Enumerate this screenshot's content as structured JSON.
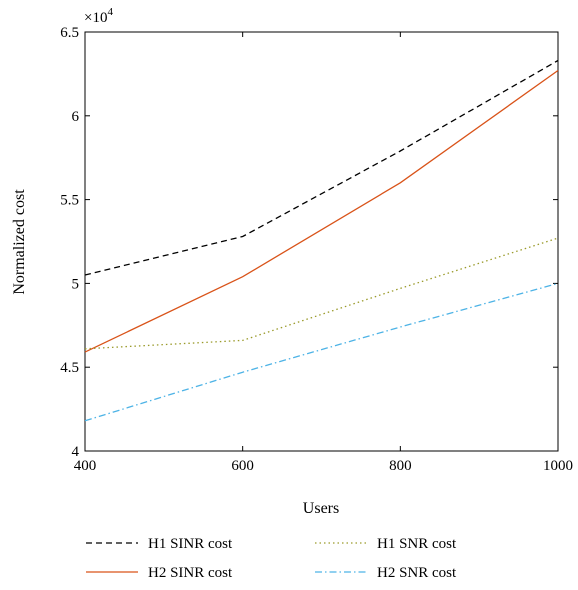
{
  "chart_data": {
    "type": "line",
    "xlabel": "Users",
    "ylabel": "Normalized cost",
    "y_multiplier_base": "×10",
    "y_multiplier_exp": "4",
    "xlim": [
      400,
      1000
    ],
    "ylim": [
      4,
      6.5
    ],
    "grid": false,
    "legend_position": "bottom",
    "x_ticks": [
      400,
      600,
      800,
      1000
    ],
    "y_ticks": [
      4,
      4.5,
      5,
      5.5,
      6,
      6.5
    ],
    "x_tick_labels": [
      "400",
      "600",
      "800",
      "1000"
    ],
    "y_tick_labels": [
      "4",
      "4.5",
      "5",
      "5.5",
      "6",
      "6.5"
    ],
    "x": [
      400,
      600,
      800,
      1000
    ],
    "series": [
      {
        "name": "H1 SINR cost",
        "values": [
          5.05,
          5.28,
          5.79,
          6.33
        ],
        "color": "#000000",
        "dash": "dashed"
      },
      {
        "name": "H2 SINR cost",
        "values": [
          4.59,
          5.04,
          5.6,
          6.27
        ],
        "color": "#d95319",
        "dash": "solid"
      },
      {
        "name": "H1 SNR cost",
        "values": [
          4.61,
          4.66,
          4.97,
          5.27
        ],
        "color": "#9a9a2a",
        "dash": "dotted"
      },
      {
        "name": "H2 SNR cost",
        "values": [
          4.18,
          4.47,
          4.74,
          5.0
        ],
        "color": "#4db3e6",
        "dash": "dashdot"
      }
    ]
  }
}
